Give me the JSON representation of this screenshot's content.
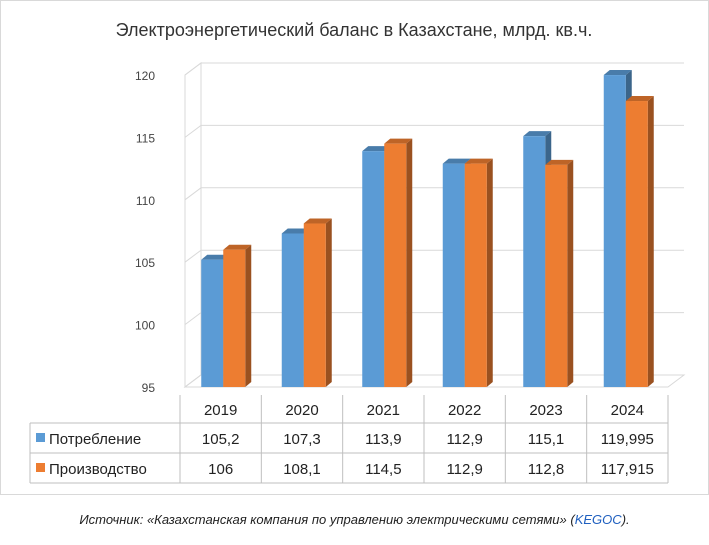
{
  "chart_data": {
    "type": "bar",
    "title": "Электроэнергетический баланс в Казахстане, млрд. кв.ч.",
    "categories": [
      "2019",
      "2020",
      "2021",
      "2022",
      "2023",
      "2024"
    ],
    "series": [
      {
        "name": "Потребление",
        "color": "#5B9BD5",
        "values": [
          105.2,
          107.3,
          113.9,
          112.9,
          115.1,
          119.995
        ],
        "labels": [
          "105,2",
          "107,3",
          "113,9",
          "112,9",
          "115,1",
          "119,995"
        ]
      },
      {
        "name": "Производство",
        "color": "#ED7D31",
        "values": [
          106,
          108.1,
          114.5,
          112.9,
          112.8,
          117.915
        ],
        "labels": [
          "106",
          "108,1",
          "114,5",
          "112,9",
          "112,8",
          "117,915"
        ]
      }
    ],
    "ylim": [
      95,
      120
    ],
    "yticks": [
      "95",
      "100",
      "105",
      "110",
      "115",
      "120"
    ],
    "grid": true,
    "legend": "data table below chart"
  },
  "caption": {
    "text": "Источник: «Казахстанская компания по управлению электрическими сетями» (",
    "link": "KEGOC",
    "end": ")."
  }
}
